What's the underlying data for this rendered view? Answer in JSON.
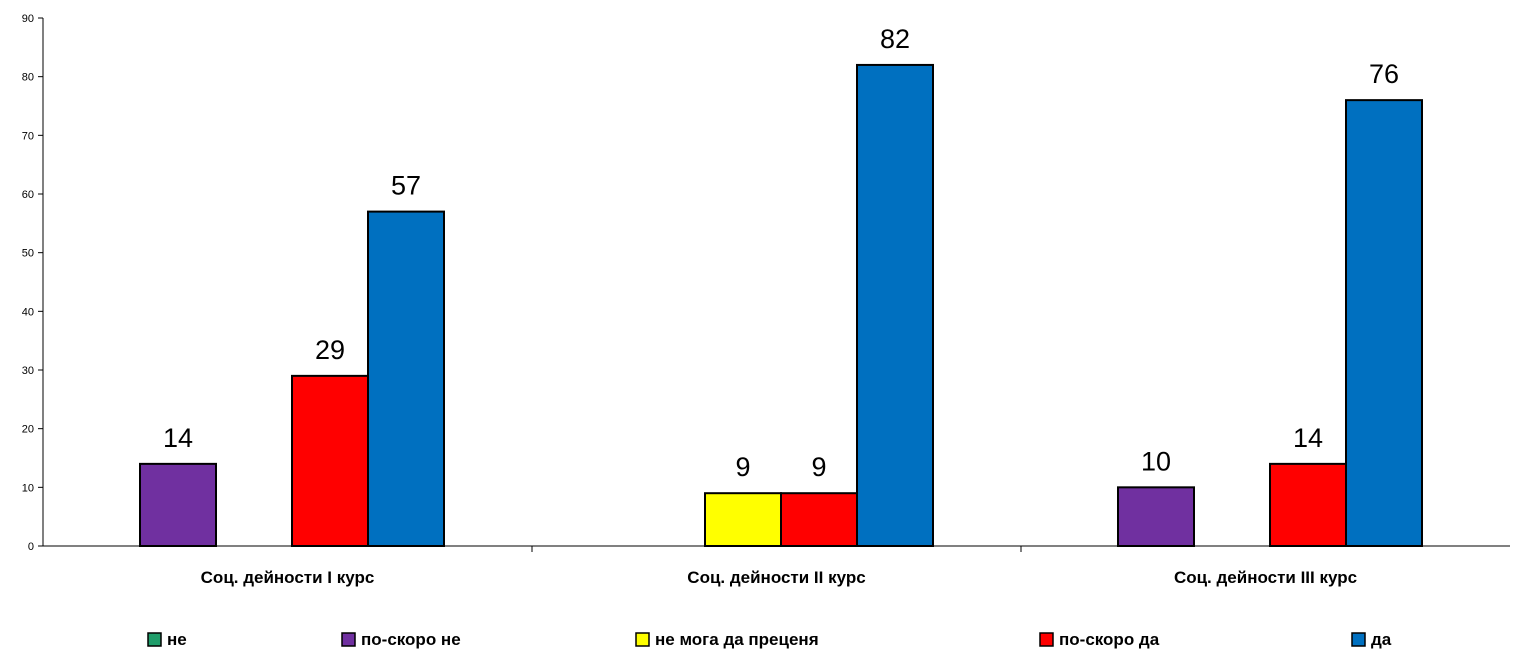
{
  "chart_data": {
    "type": "bar",
    "categories": [
      "Соц. дейности I курс",
      "Соц. дейности II курс",
      "Соц. дейности III курс"
    ],
    "series": [
      {
        "name": "не",
        "color": "#1F9D6A",
        "values": [
          null,
          null,
          null
        ]
      },
      {
        "name": "по-скоро не",
        "color": "#7030A0",
        "values": [
          14,
          null,
          10
        ]
      },
      {
        "name": "не мога да преценя",
        "color": "#FFFF00",
        "values": [
          null,
          9,
          null
        ]
      },
      {
        "name": "по-скоро да",
        "color": "#FF0000",
        "values": [
          29,
          9,
          14
        ]
      },
      {
        "name": "да",
        "color": "#0070C0",
        "values": [
          57,
          82,
          76
        ]
      }
    ],
    "ylim": [
      0,
      90
    ],
    "yticks": [
      0,
      10,
      20,
      30,
      40,
      50,
      60,
      70,
      80,
      90
    ],
    "title": "",
    "xlabel": "",
    "ylabel": "",
    "legend_position": "bottom",
    "grid": false
  }
}
